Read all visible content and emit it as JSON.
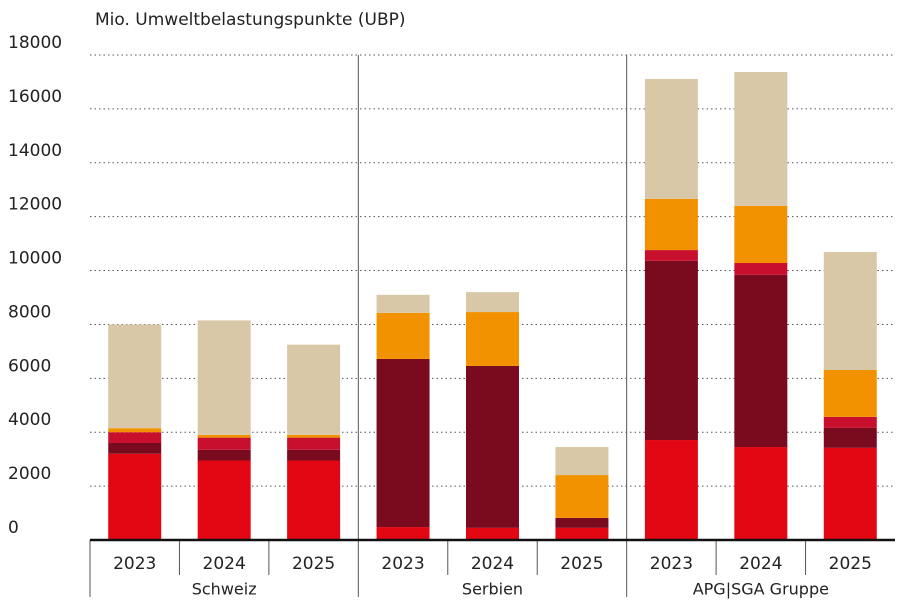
{
  "chart_data": {
    "type": "stacked_bar",
    "y_axis_label": "Mio. Umweltbelastungspunkte (UBP)",
    "groups": [
      {
        "name": "Schweiz",
        "categories": [
          "2023",
          "2024",
          "2025"
        ]
      },
      {
        "name": "Serbien",
        "categories": [
          "2023",
          "2024",
          "2025"
        ]
      },
      {
        "name": "APG|SGA Gruppe",
        "categories": [
          "2023",
          "2024",
          "2025"
        ]
      }
    ],
    "series": [
      {
        "color": "#e30613",
        "values": [
          3200,
          2950,
          2950,
          480,
          450,
          450,
          3710,
          3450,
          3420
        ]
      },
      {
        "color": "#7a0a1e",
        "values": [
          400,
          400,
          400,
          6240,
          6010,
          370,
          6650,
          6390,
          740
        ]
      },
      {
        "color": "#c8102e",
        "values": [
          400,
          450,
          450,
          0,
          0,
          0,
          400,
          440,
          410
        ]
      },
      {
        "color": "#f39200",
        "values": [
          150,
          100,
          100,
          1710,
          2000,
          1590,
          1900,
          2120,
          1740
        ]
      },
      {
        "color": "#d8c8a8",
        "values": [
          3850,
          4250,
          3350,
          670,
          740,
          1040,
          4450,
          4970,
          4380
        ]
      }
    ],
    "ylim": [
      0,
      18000
    ],
    "yticks": [
      0,
      2000,
      4000,
      6000,
      8000,
      10000,
      12000,
      14000,
      16000,
      18000
    ],
    "grid": true
  }
}
